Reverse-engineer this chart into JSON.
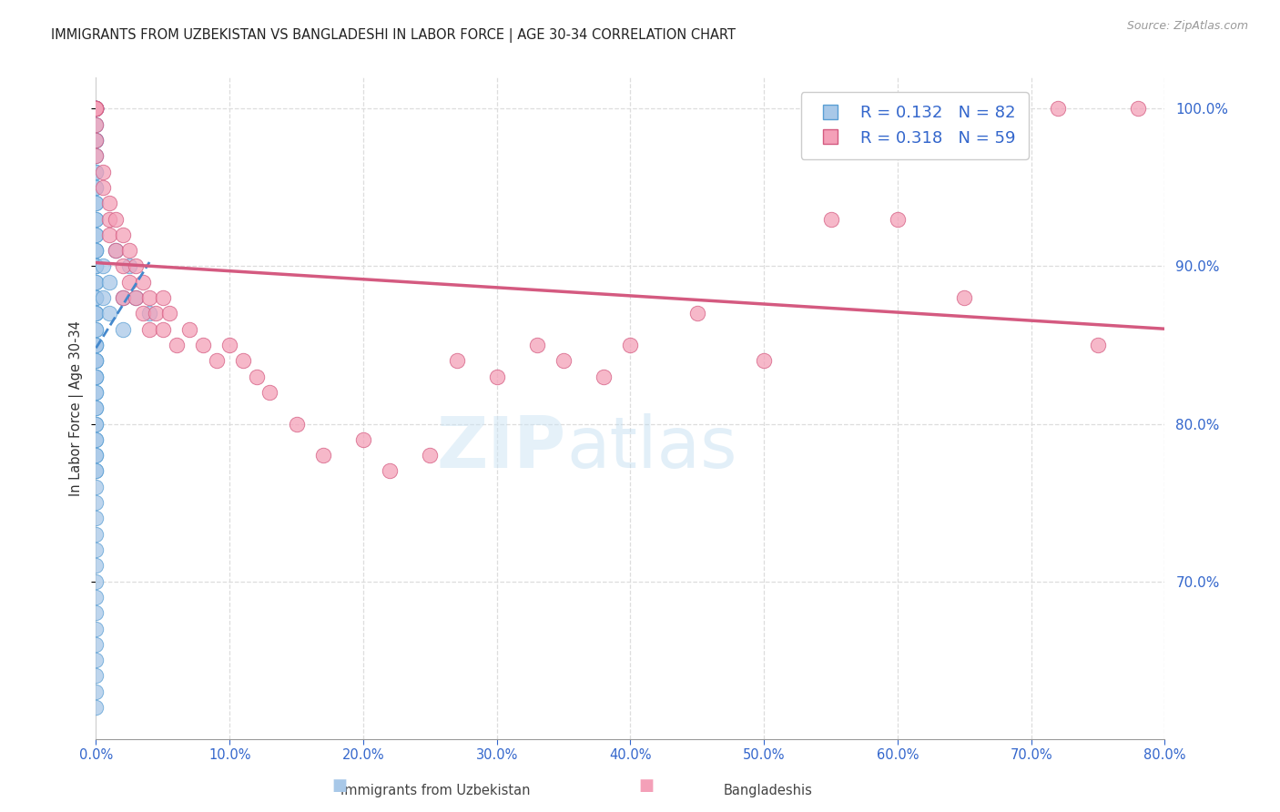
{
  "title": "IMMIGRANTS FROM UZBEKISTAN VS BANGLADESHI IN LABOR FORCE | AGE 30-34 CORRELATION CHART",
  "source_text": "Source: ZipAtlas.com",
  "ylabel": "In Labor Force | Age 30-34",
  "legend_label1": "Immigrants from Uzbekistan",
  "legend_label2": "Bangladeshis",
  "r1": 0.132,
  "n1": 82,
  "r2": 0.318,
  "n2": 59,
  "color_blue_fill": "#a8c8e8",
  "color_blue_edge": "#5a9fd4",
  "color_pink_fill": "#f4a0b8",
  "color_pink_edge": "#d45a80",
  "color_blue_line": "#4488cc",
  "color_pink_line": "#d45a80",
  "color_axis_blue": "#3366CC",
  "xlim": [
    0.0,
    0.8
  ],
  "ylim": [
    0.6,
    1.02
  ],
  "yticks": [
    0.7,
    0.8,
    0.9,
    1.0
  ],
  "xticks": [
    0.0,
    0.1,
    0.2,
    0.3,
    0.4,
    0.5,
    0.6,
    0.7,
    0.8
  ],
  "uzbek_x": [
    0.0,
    0.0,
    0.0,
    0.0,
    0.0,
    0.0,
    0.0,
    0.0,
    0.0,
    0.0,
    0.0,
    0.0,
    0.0,
    0.0,
    0.0,
    0.0,
    0.0,
    0.0,
    0.0,
    0.0,
    0.0,
    0.0,
    0.0,
    0.0,
    0.0,
    0.0,
    0.0,
    0.0,
    0.0,
    0.0,
    0.0,
    0.0,
    0.0,
    0.0,
    0.0,
    0.0,
    0.0,
    0.0,
    0.0,
    0.0,
    0.0,
    0.0,
    0.0,
    0.0,
    0.0,
    0.0,
    0.0,
    0.0,
    0.0,
    0.0,
    0.0,
    0.0,
    0.0,
    0.0,
    0.0,
    0.0,
    0.0,
    0.0,
    0.0,
    0.0,
    0.0,
    0.0,
    0.0,
    0.0,
    0.0,
    0.0,
    0.0,
    0.0,
    0.0,
    0.0,
    0.0,
    0.0,
    0.005,
    0.005,
    0.01,
    0.01,
    0.015,
    0.02,
    0.02,
    0.025,
    0.03,
    0.04
  ],
  "uzbek_y": [
    1.0,
    1.0,
    1.0,
    1.0,
    1.0,
    1.0,
    0.99,
    0.98,
    0.98,
    0.97,
    0.96,
    0.96,
    0.95,
    0.95,
    0.94,
    0.94,
    0.93,
    0.93,
    0.92,
    0.92,
    0.91,
    0.91,
    0.91,
    0.9,
    0.9,
    0.9,
    0.89,
    0.89,
    0.88,
    0.88,
    0.88,
    0.87,
    0.87,
    0.87,
    0.86,
    0.86,
    0.85,
    0.85,
    0.85,
    0.84,
    0.84,
    0.84,
    0.83,
    0.83,
    0.83,
    0.82,
    0.82,
    0.81,
    0.81,
    0.8,
    0.8,
    0.79,
    0.79,
    0.78,
    0.78,
    0.77,
    0.77,
    0.76,
    0.75,
    0.74,
    0.73,
    0.72,
    0.71,
    0.7,
    0.69,
    0.68,
    0.67,
    0.66,
    0.65,
    0.64,
    0.63,
    0.62,
    0.9,
    0.88,
    0.89,
    0.87,
    0.91,
    0.88,
    0.86,
    0.9,
    0.88,
    0.87
  ],
  "bangla_x": [
    0.0,
    0.0,
    0.0,
    0.0,
    0.0,
    0.0,
    0.0,
    0.0,
    0.0,
    0.0,
    0.005,
    0.005,
    0.01,
    0.01,
    0.01,
    0.015,
    0.015,
    0.02,
    0.02,
    0.02,
    0.025,
    0.025,
    0.03,
    0.03,
    0.035,
    0.035,
    0.04,
    0.04,
    0.045,
    0.05,
    0.05,
    0.055,
    0.06,
    0.07,
    0.08,
    0.09,
    0.1,
    0.11,
    0.12,
    0.13,
    0.15,
    0.17,
    0.2,
    0.22,
    0.25,
    0.27,
    0.3,
    0.33,
    0.35,
    0.38,
    0.4,
    0.45,
    0.5,
    0.55,
    0.6,
    0.65,
    0.72,
    0.75,
    0.78
  ],
  "bangla_y": [
    1.0,
    1.0,
    1.0,
    1.0,
    1.0,
    1.0,
    1.0,
    0.99,
    0.98,
    0.97,
    0.96,
    0.95,
    0.94,
    0.93,
    0.92,
    0.93,
    0.91,
    0.92,
    0.9,
    0.88,
    0.91,
    0.89,
    0.9,
    0.88,
    0.89,
    0.87,
    0.88,
    0.86,
    0.87,
    0.88,
    0.86,
    0.87,
    0.85,
    0.86,
    0.85,
    0.84,
    0.85,
    0.84,
    0.83,
    0.82,
    0.8,
    0.78,
    0.79,
    0.77,
    0.78,
    0.84,
    0.83,
    0.85,
    0.84,
    0.83,
    0.85,
    0.87,
    0.84,
    0.93,
    0.93,
    0.88,
    1.0,
    0.85,
    1.0
  ]
}
